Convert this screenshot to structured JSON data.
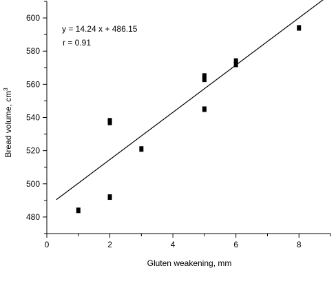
{
  "chart_data": {
    "type": "scatter",
    "title": "",
    "xlabel": "Gluten weakening, mm",
    "ylabel": "Bread volume, cm",
    "ylabel_superscript": "3",
    "xlim": [
      0,
      9
    ],
    "ylim": [
      470,
      610
    ],
    "xticks": [
      0,
      2,
      4,
      6,
      8
    ],
    "yticks": [
      480,
      500,
      520,
      540,
      560,
      580,
      600
    ],
    "grid": false,
    "legend": "none",
    "series": [
      {
        "points": [
          {
            "x": 1,
            "y": 484
          },
          {
            "x": 2,
            "y": 492
          },
          {
            "x": 2,
            "y": 537
          },
          {
            "x": 2,
            "y": 538
          },
          {
            "x": 3,
            "y": 521
          },
          {
            "x": 5,
            "y": 545
          },
          {
            "x": 5,
            "y": 563
          },
          {
            "x": 5,
            "y": 565
          },
          {
            "x": 6,
            "y": 572
          },
          {
            "x": 6,
            "y": 574
          },
          {
            "x": 8,
            "y": 594
          }
        ],
        "marker_color": "#000000"
      }
    ],
    "regression": {
      "slope": 14.24,
      "intercept": 486.15,
      "x_range": [
        0.3,
        8.8
      ],
      "color": "#000000"
    },
    "annotations": {
      "equation": "y = 14.24 x + 486.15",
      "r": "r = 0.91"
    }
  }
}
